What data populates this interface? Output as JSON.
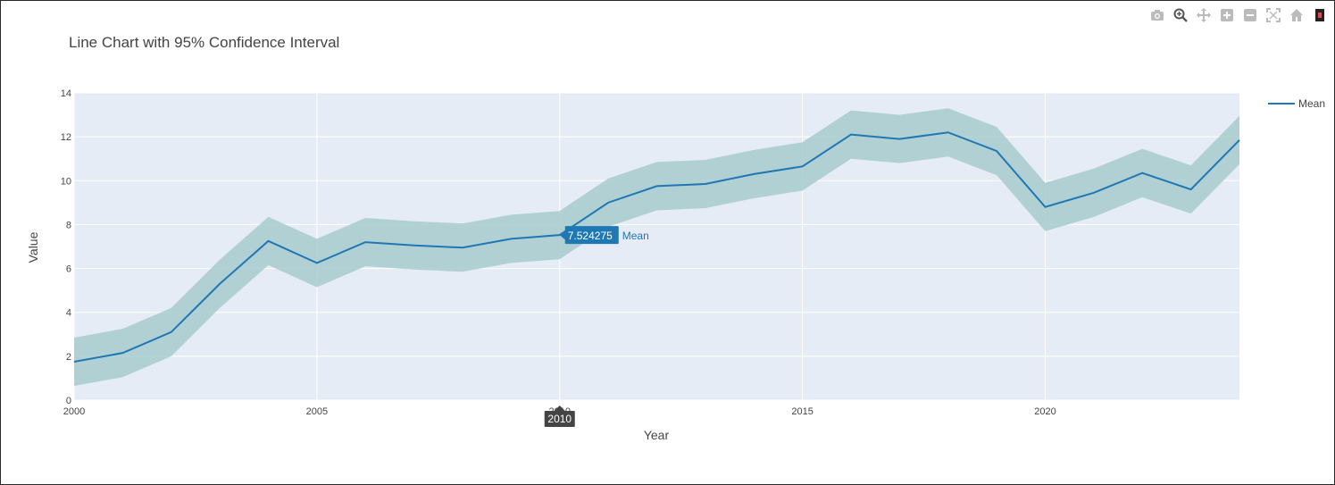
{
  "modebar": {
    "buttons": [
      {
        "name": "camera-icon"
      },
      {
        "name": "zoom-icon"
      },
      {
        "name": "pan-icon"
      },
      {
        "name": "zoom-in-icon"
      },
      {
        "name": "zoom-out-icon"
      },
      {
        "name": "autoscale-icon"
      },
      {
        "name": "home-icon"
      },
      {
        "name": "plotly-logo-icon"
      }
    ]
  },
  "tooltip": {
    "x_label": "2010",
    "value_label": "7.524275",
    "series_label": "Mean",
    "series_color": "#1f77b4"
  },
  "chart_data": {
    "type": "line",
    "title": "Line Chart with 95% Confidence Interval",
    "xlabel": "Year",
    "ylabel": "Value",
    "x": [
      2000,
      2001,
      2002,
      2003,
      2004,
      2005,
      2006,
      2007,
      2008,
      2009,
      2010,
      2011,
      2012,
      2013,
      2014,
      2015,
      2016,
      2017,
      2018,
      2019,
      2020,
      2021,
      2022,
      2023,
      2024
    ],
    "x_ticks": [
      2000,
      2005,
      2010,
      2015,
      2020
    ],
    "y_ticks": [
      0,
      2,
      4,
      6,
      8,
      10,
      12,
      14
    ],
    "xlim": [
      2000,
      2024
    ],
    "ylim": [
      0,
      14
    ],
    "grid": true,
    "legend_position": "right",
    "colors": {
      "line": "#1f77b4",
      "band": "#a7cbcd",
      "plot_bg": "#e5ecf6",
      "grid": "#ffffff"
    },
    "series": [
      {
        "name": "Mean",
        "values": [
          1.75,
          2.15,
          3.1,
          5.3,
          7.25,
          6.25,
          7.2,
          7.05,
          6.95,
          7.35,
          7.524275,
          9.0,
          9.75,
          9.85,
          10.3,
          10.65,
          12.1,
          11.9,
          12.2,
          11.35,
          8.8,
          9.45,
          10.35,
          9.6,
          11.85
        ],
        "lower": [
          0.65,
          1.05,
          2.0,
          4.2,
          6.15,
          5.15,
          6.1,
          5.95,
          5.85,
          6.25,
          6.42,
          7.9,
          8.65,
          8.75,
          9.2,
          9.55,
          11.0,
          10.8,
          11.1,
          10.25,
          7.7,
          8.35,
          9.25,
          8.5,
          10.75
        ],
        "upper": [
          2.85,
          3.25,
          4.2,
          6.4,
          8.35,
          7.35,
          8.3,
          8.15,
          8.05,
          8.45,
          8.62,
          10.1,
          10.85,
          10.95,
          11.4,
          11.75,
          13.2,
          13.0,
          13.3,
          12.45,
          9.9,
          10.55,
          11.45,
          10.7,
          12.95
        ]
      }
    ]
  }
}
